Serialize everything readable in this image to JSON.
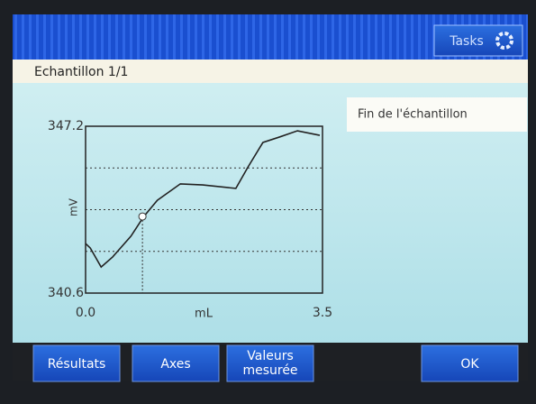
{
  "top_bar": {
    "tasks_button": "Tasks"
  },
  "header": {
    "title": "Echantillon 1/1"
  },
  "status": "Fin de l'échantillon",
  "chart_data": {
    "type": "line",
    "x_label": "mL",
    "y_label": "mV",
    "x": [
      0,
      0.07,
      0.23,
      0.4,
      0.67,
      0.86,
      1.06,
      1.4,
      1.73,
      2.22,
      2.4,
      2.62,
      2.86,
      3.13,
      3.46
    ],
    "values": [
      342.56,
      342.38,
      341.63,
      342.03,
      342.85,
      343.63,
      344.27,
      344.92,
      344.88,
      344.74,
      345.59,
      346.56,
      346.77,
      347.02,
      346.84
    ],
    "color": "#222222",
    "xlim": [
      0,
      3.5
    ],
    "xticks": [
      {
        "value": 0,
        "label": "0.0"
      },
      3.5
    ],
    "ylim": [
      340.6,
      347.2
    ],
    "yticks": [
      347.2,
      340.6
    ],
    "ygrid": [
      342.25,
      343.9,
      345.55
    ],
    "marker": {
      "x": 0.84,
      "y": 343.63
    }
  },
  "buttons": [
    "Résultats",
    "Axes",
    "Valeurs mesurée",
    "OK"
  ]
}
